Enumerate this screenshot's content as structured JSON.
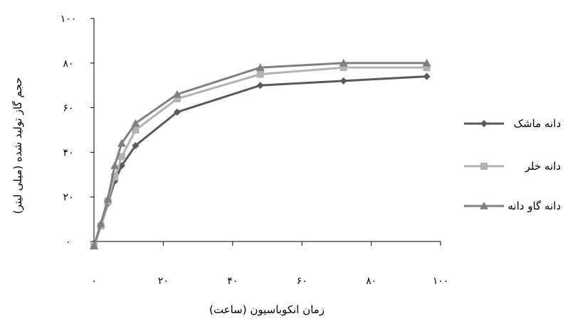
{
  "chart_data": {
    "type": "line",
    "xlabel": "زمان انکوباسیون (ساعت)",
    "ylabel": "حجم گاز تولید شده (میلی لیتر)",
    "xlim": [
      0,
      100
    ],
    "ylim": [
      0,
      100
    ],
    "x_ticks": [
      0,
      20,
      40,
      60,
      80,
      100
    ],
    "y_ticks": [
      0,
      20,
      40,
      60,
      80,
      100
    ],
    "x_tick_labels": [
      "۰",
      "۲۰",
      "۴۰",
      "۶۰",
      "۸۰",
      "۱۰۰"
    ],
    "y_tick_labels": [
      "۰",
      "۲۰",
      "۴۰",
      "۶۰",
      "۸۰",
      "۱۰۰"
    ],
    "grid": false,
    "legend_position": "right",
    "x": [
      0,
      2,
      4,
      6,
      8,
      12,
      24,
      48,
      72,
      96
    ],
    "series": [
      {
        "name": "دانه ماشک",
        "marker": "diamond",
        "color": "#595959",
        "values": [
          -2,
          7,
          17,
          27,
          34,
          43,
          58,
          70,
          72,
          74
        ]
      },
      {
        "name": "دانه خلر",
        "marker": "square",
        "color": "#b3b3b3",
        "values": [
          -2,
          7,
          18,
          29,
          38,
          50,
          64,
          75,
          78,
          78
        ]
      },
      {
        "name": "دانه گاو دانه",
        "marker": "triangle",
        "color": "#808080",
        "values": [
          -2,
          8,
          19,
          34,
          44,
          53,
          66,
          78,
          80,
          80
        ]
      }
    ]
  }
}
